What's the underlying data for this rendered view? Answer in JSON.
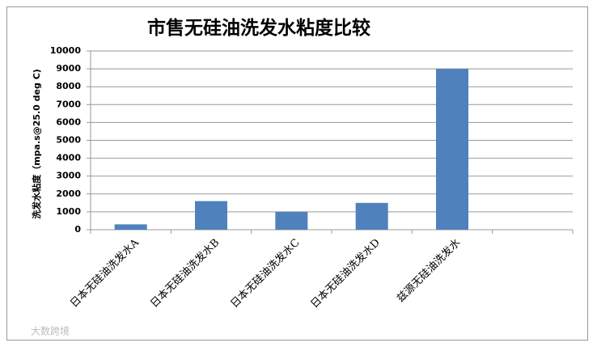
{
  "chart_data": {
    "type": "bar",
    "title": "市售无硅油洗发水粘度比较",
    "y_label": "洗发水粘度（mpa.s@25.0 deg C)",
    "categories": [
      "日本无硅油洗发水A",
      "日本无硅油洗发水B",
      "日本无硅油洗发水C",
      "日本无硅油洗发水D",
      "兹源无硅油洗发水",
      null
    ],
    "values": [
      300,
      1600,
      1000,
      1500,
      9000,
      null
    ],
    "color": "#4f81bd",
    "ylim": [
      0,
      10000
    ],
    "yticks": [
      0,
      1000,
      2000,
      3000,
      4000,
      5000,
      6000,
      7000,
      8000,
      9000,
      10000
    ],
    "grid": true
  },
  "watermark": "大数跨境"
}
